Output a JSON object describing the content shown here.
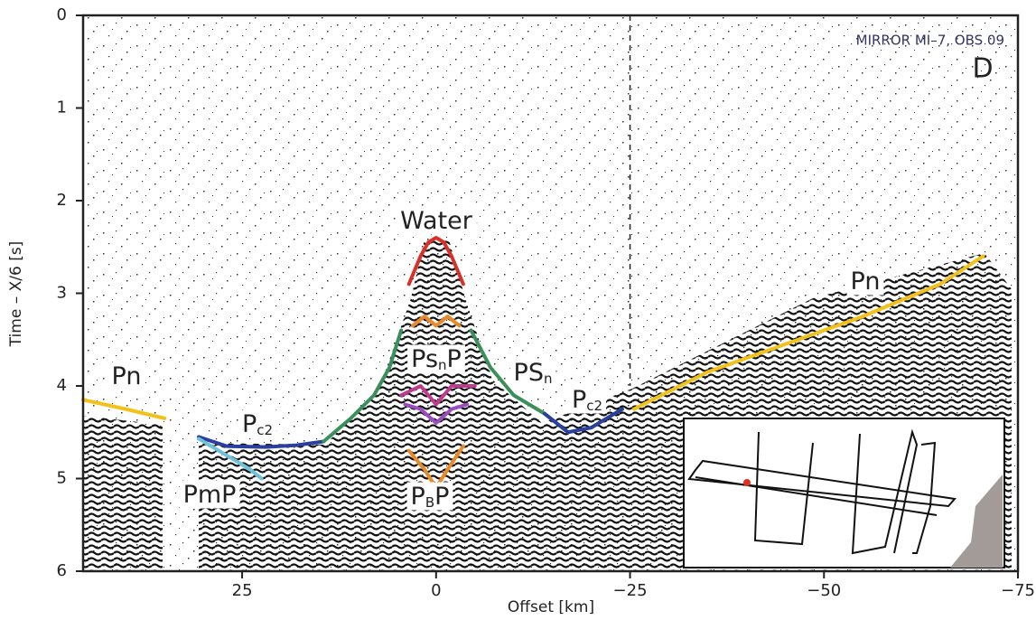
{
  "chart_data": {
    "type": "line",
    "title": "MIRROR MI–7, OBS 09",
    "panel_label": "D",
    "xlabel": "Offset [km]",
    "ylabel": "Time – X/6 [s]",
    "xlim": [
      45.5,
      -75
    ],
    "ylim": [
      6,
      0
    ],
    "xticks": [
      25,
      0,
      {
        "value": -25,
        "label": "−25"
      },
      {
        "value": -50,
        "label": "−50"
      },
      {
        "value": -75,
        "label": "−75"
      }
    ],
    "yticks": [
      0,
      1,
      2,
      3,
      4,
      5,
      6
    ],
    "reference_line_x": -25,
    "annotations": [
      {
        "text": "Pn"
      },
      {
        "text": "P",
        "sub": "c",
        "tail": "2"
      },
      {
        "text": "PmP"
      },
      {
        "text": "Water"
      },
      {
        "text": "Ps",
        "sub": "n",
        "tail": "P"
      },
      {
        "text": "PS",
        "sub": "n"
      },
      {
        "text": "P",
        "sub": "c",
        "tail": "2"
      },
      {
        "text": "P",
        "sub": "B",
        "tail": "P"
      },
      {
        "text": "Pn"
      }
    ],
    "series": [
      {
        "color": "#f2c21b",
        "x": [
          45.5,
          40,
          35
        ],
        "values": [
          4.15,
          4.25,
          4.35
        ]
      },
      {
        "color": "#2a3f9e",
        "x": [
          30.6,
          27,
          22,
          18,
          14.5
        ],
        "values": [
          4.55,
          4.65,
          4.66,
          4.64,
          4.6
        ]
      },
      {
        "color": "#6fc3d8",
        "x": [
          30.6,
          27,
          24,
          22.5
        ],
        "values": [
          4.57,
          4.75,
          4.9,
          5.0
        ]
      },
      {
        "color": "#3a8f5a",
        "x": [
          14.5,
          11,
          8,
          6,
          4.5
        ],
        "values": [
          4.6,
          4.35,
          4.1,
          3.8,
          3.4
        ]
      },
      {
        "color": "#d8312a",
        "x": [
          3.5,
          2,
          1,
          0,
          -1,
          -2,
          -3.5
        ],
        "values": [
          2.9,
          2.6,
          2.45,
          2.4,
          2.45,
          2.6,
          2.9
        ]
      },
      {
        "color": "#e88a2a",
        "x": [
          3,
          1.5,
          0,
          -1.5,
          -3
        ],
        "values": [
          3.35,
          3.25,
          3.35,
          3.25,
          3.35
        ]
      },
      {
        "color": "#c03a8f",
        "x": [
          4.5,
          2,
          0,
          -2,
          -5
        ],
        "values": [
          4.1,
          4.0,
          4.2,
          4.0,
          4.0
        ]
      },
      {
        "color": "#9a4cc0",
        "x": [
          4,
          2,
          0,
          -2,
          -4
        ],
        "values": [
          4.2,
          4.25,
          4.4,
          4.25,
          4.2
        ]
      },
      {
        "color": "#e88a2a",
        "x": [
          3.5,
          1.5,
          0,
          -1.5,
          -3.5
        ],
        "values": [
          4.7,
          4.9,
          5.1,
          4.9,
          4.65
        ]
      },
      {
        "color": "#3a8f5a",
        "x": [
          -4.5,
          -7,
          -10,
          -14
        ],
        "values": [
          3.4,
          3.8,
          4.1,
          4.3
        ]
      },
      {
        "color": "#2a3f9e",
        "x": [
          -14,
          -17,
          -20,
          -24
        ],
        "values": [
          4.3,
          4.5,
          4.45,
          4.25
        ]
      },
      {
        "color": "#f2c21b",
        "x": [
          -25.5,
          -35,
          -45,
          -55,
          -65,
          -70.5
        ],
        "values": [
          4.25,
          3.85,
          3.55,
          3.25,
          2.9,
          2.6
        ]
      }
    ]
  }
}
